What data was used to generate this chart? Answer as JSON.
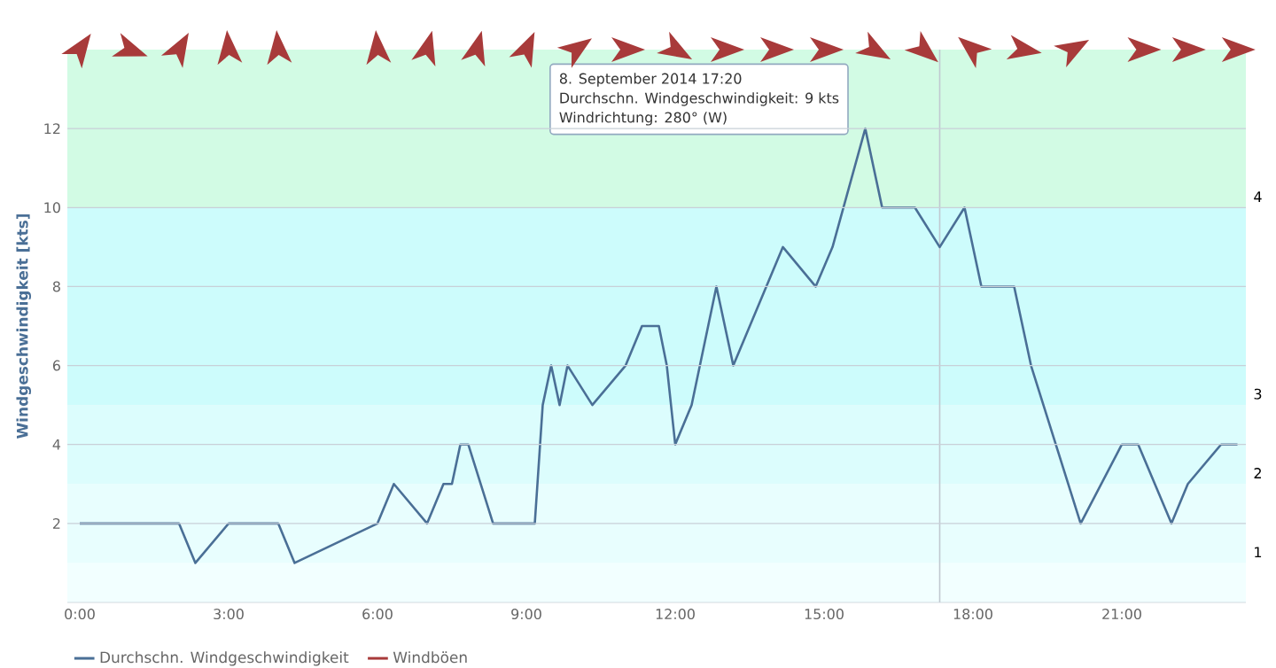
{
  "chart_data": {
    "type": "line",
    "ylabel": "Windgeschwindigkeit [kts]",
    "xlim": [
      -0.25,
      23.5
    ],
    "ylim": [
      0,
      14
    ],
    "xticks": [
      {
        "value": 0,
        "label": "0:00"
      },
      {
        "value": 3,
        "label": "3:00"
      },
      {
        "value": 6,
        "label": "6:00"
      },
      {
        "value": 9,
        "label": "9:00"
      },
      {
        "value": 12,
        "label": "12:00"
      },
      {
        "value": 15,
        "label": "15:00"
      },
      {
        "value": 18,
        "label": "18:00"
      },
      {
        "value": 21,
        "label": "21:00"
      }
    ],
    "yticks": [
      2,
      4,
      6,
      8,
      10,
      12
    ],
    "grid": "y",
    "legend": "bottom left",
    "x": [
      0,
      2,
      2.33,
      3,
      4,
      4.33,
      6,
      6.33,
      7,
      7.33,
      7.5,
      7.67,
      7.83,
      8.33,
      9.17,
      9.33,
      9.5,
      9.67,
      9.83,
      10.33,
      11,
      11.33,
      11.67,
      11.83,
      12,
      12.33,
      12.83,
      13.17,
      14.17,
      14.83,
      15.17,
      15.83,
      16.17,
      16.83,
      17.33,
      17.83,
      18.17,
      18.83,
      19.17,
      20.17,
      21,
      21.33,
      22,
      22.33,
      23,
      23.33
    ],
    "series": [
      {
        "name": "Durchschn. Windgeschwindigkeit",
        "color": "#4a6f96",
        "values": [
          2,
          2,
          1,
          2,
          2,
          1,
          2,
          3,
          2,
          3,
          3,
          4,
          4,
          2,
          2,
          5,
          6,
          5,
          6,
          5,
          6,
          7,
          7,
          6,
          4,
          5,
          8,
          6,
          9,
          8,
          9,
          12,
          10,
          10,
          9,
          10,
          8,
          8,
          6,
          2,
          4,
          4,
          2,
          3,
          4,
          4
        ]
      },
      {
        "name": "Windböen",
        "color": "#a83a3a",
        "values": [
          null,
          null,
          null,
          null,
          null,
          null,
          null,
          null,
          null,
          null,
          null,
          null,
          null,
          null,
          null,
          null,
          null,
          null,
          null,
          null,
          null,
          null,
          null,
          null,
          null,
          null,
          null,
          null,
          null,
          null,
          null,
          null,
          null,
          null,
          null,
          null,
          null,
          null,
          null,
          null,
          null,
          null,
          null,
          null,
          null,
          null
        ]
      }
    ],
    "bands": [
      {
        "axis": "y",
        "from": 0,
        "to": 1,
        "color": "#f2ffff"
      },
      {
        "axis": "y",
        "from": 1,
        "to": 3,
        "label": "1",
        "color": "#e8fefe"
      },
      {
        "axis": "y",
        "from": 3,
        "to": 5,
        "label": "2",
        "color": "#dcfdfd"
      },
      {
        "axis": "y",
        "from": 5,
        "to": 10,
        "label": "3",
        "color": "#cdfcfc"
      },
      {
        "axis": "y",
        "from": 10,
        "to": 14,
        "label": "4",
        "color": "#d2fbe4"
      }
    ],
    "ref_lines": [
      {
        "axis": "x",
        "value": 17.33,
        "color": "#c0c8d0"
      }
    ],
    "annotations": [
      "8. September 2014 17:20",
      "Durchschn. Windgeschwindigkeit: 9 kts",
      "Windrichtung: 280° (W)"
    ]
  }
}
